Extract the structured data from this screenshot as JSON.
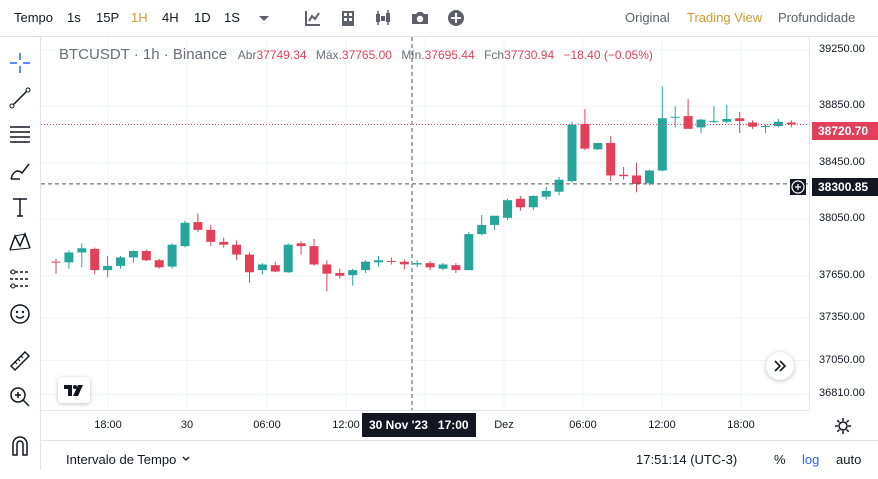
{
  "topbar": {
    "tempo_label": "Tempo",
    "intervals": [
      "1s",
      "15P",
      "1H",
      "4H",
      "1D",
      "1S"
    ],
    "active_interval": "1H",
    "views": [
      "Original",
      "Trading View",
      "Profundidade"
    ],
    "active_view": "Trading View"
  },
  "legend": {
    "symbol": "BTCUSDT · 1h · Binance",
    "open_label": "Abr",
    "open_value": "37749.34",
    "high_label": "Máx.",
    "high_value": "37765.00",
    "low_label": "Mín.",
    "low_value": "37695.44",
    "close_label": "Fch",
    "close_value": "37730.94",
    "change": "−18.40 (−0.05%)"
  },
  "price_axis": {
    "ticks": [
      "39250.00",
      "38850.00",
      "38450.00",
      "38050.00",
      "37650.00",
      "37350.00",
      "37050.00",
      "36810.00"
    ],
    "last_price_tag": "38720.70",
    "crosshair_price_tag": "38300.85"
  },
  "time_axis": {
    "ticks": [
      "18:00",
      "30",
      "06:00",
      "12:00",
      "Dez",
      "06:00",
      "12:00",
      "18:00"
    ],
    "crosshair_label": "30 Nov '23   17:00"
  },
  "bottombar": {
    "range_label": "Intervalo de Tempo",
    "clock": "17:51:14 (UTC-3)",
    "percent_label": "%",
    "log_label": "log",
    "auto_label": "auto"
  },
  "colors": {
    "up": "#26a69a",
    "down": "#e2405a",
    "accent": "#d09a2f",
    "log_blue": "#2962ff"
  },
  "chart_data": {
    "type": "candlestick",
    "symbol": "BTCUSDT",
    "interval": "1h",
    "candles": [
      {
        "o": 37750,
        "h": 37770,
        "l": 37665,
        "c": 37745
      },
      {
        "o": 37745,
        "h": 37830,
        "l": 37700,
        "c": 37815
      },
      {
        "o": 37815,
        "h": 37880,
        "l": 37710,
        "c": 37845
      },
      {
        "o": 37840,
        "h": 37850,
        "l": 37660,
        "c": 37690
      },
      {
        "o": 37690,
        "h": 37790,
        "l": 37640,
        "c": 37720
      },
      {
        "o": 37720,
        "h": 37790,
        "l": 37700,
        "c": 37780
      },
      {
        "o": 37780,
        "h": 37830,
        "l": 37740,
        "c": 37825
      },
      {
        "o": 37825,
        "h": 37835,
        "l": 37755,
        "c": 37760
      },
      {
        "o": 37760,
        "h": 37770,
        "l": 37700,
        "c": 37710
      },
      {
        "o": 37715,
        "h": 37880,
        "l": 37700,
        "c": 37870
      },
      {
        "o": 37860,
        "h": 38040,
        "l": 37850,
        "c": 38025
      },
      {
        "o": 38030,
        "h": 38090,
        "l": 37960,
        "c": 37975
      },
      {
        "o": 37975,
        "h": 38010,
        "l": 37860,
        "c": 37890
      },
      {
        "o": 37890,
        "h": 37920,
        "l": 37850,
        "c": 37870
      },
      {
        "o": 37870,
        "h": 37900,
        "l": 37760,
        "c": 37800
      },
      {
        "o": 37800,
        "h": 37815,
        "l": 37600,
        "c": 37675
      },
      {
        "o": 37690,
        "h": 37740,
        "l": 37660,
        "c": 37730
      },
      {
        "o": 37725,
        "h": 37750,
        "l": 37675,
        "c": 37680
      },
      {
        "o": 37675,
        "h": 37880,
        "l": 37670,
        "c": 37870
      },
      {
        "o": 37880,
        "h": 37895,
        "l": 37800,
        "c": 37860
      },
      {
        "o": 37860,
        "h": 37910,
        "l": 37720,
        "c": 37730
      },
      {
        "o": 37730,
        "h": 37760,
        "l": 37540,
        "c": 37665
      },
      {
        "o": 37670,
        "h": 37700,
        "l": 37630,
        "c": 37650
      },
      {
        "o": 37655,
        "h": 37700,
        "l": 37580,
        "c": 37690
      },
      {
        "o": 37690,
        "h": 37760,
        "l": 37670,
        "c": 37750
      },
      {
        "o": 37745,
        "h": 37790,
        "l": 37715,
        "c": 37760
      },
      {
        "o": 37755,
        "h": 37780,
        "l": 37730,
        "c": 37750
      },
      {
        "o": 37749,
        "h": 37765,
        "l": 37695,
        "c": 37731
      },
      {
        "o": 37730,
        "h": 37760,
        "l": 37710,
        "c": 37740
      },
      {
        "o": 37740,
        "h": 37755,
        "l": 37690,
        "c": 37710
      },
      {
        "o": 37700,
        "h": 37740,
        "l": 37690,
        "c": 37730
      },
      {
        "o": 37725,
        "h": 37740,
        "l": 37670,
        "c": 37690
      },
      {
        "o": 37690,
        "h": 37960,
        "l": 37690,
        "c": 37945
      },
      {
        "o": 37945,
        "h": 38080,
        "l": 37935,
        "c": 38010
      },
      {
        "o": 38010,
        "h": 38070,
        "l": 37975,
        "c": 38075
      },
      {
        "o": 38060,
        "h": 38195,
        "l": 38045,
        "c": 38185
      },
      {
        "o": 38195,
        "h": 38215,
        "l": 38110,
        "c": 38135
      },
      {
        "o": 38135,
        "h": 38220,
        "l": 38115,
        "c": 38215
      },
      {
        "o": 38210,
        "h": 38280,
        "l": 38190,
        "c": 38250
      },
      {
        "o": 38245,
        "h": 38350,
        "l": 38220,
        "c": 38330
      },
      {
        "o": 38320,
        "h": 38740,
        "l": 38310,
        "c": 38720
      },
      {
        "o": 38725,
        "h": 38830,
        "l": 38540,
        "c": 38550
      },
      {
        "o": 38545,
        "h": 38590,
        "l": 38540,
        "c": 38590
      },
      {
        "o": 38590,
        "h": 38640,
        "l": 38320,
        "c": 38360
      },
      {
        "o": 38365,
        "h": 38420,
        "l": 38330,
        "c": 38355
      },
      {
        "o": 38360,
        "h": 38450,
        "l": 38240,
        "c": 38300
      },
      {
        "o": 38305,
        "h": 38400,
        "l": 38290,
        "c": 38395
      },
      {
        "o": 38395,
        "h": 38990,
        "l": 38390,
        "c": 38765
      },
      {
        "o": 38770,
        "h": 38850,
        "l": 38700,
        "c": 38775
      },
      {
        "o": 38780,
        "h": 38900,
        "l": 38690,
        "c": 38690
      },
      {
        "o": 38700,
        "h": 38760,
        "l": 38660,
        "c": 38755
      },
      {
        "o": 38740,
        "h": 38850,
        "l": 38730,
        "c": 38745
      },
      {
        "o": 38740,
        "h": 38860,
        "l": 38730,
        "c": 38760
      },
      {
        "o": 38765,
        "h": 38810,
        "l": 38660,
        "c": 38745
      },
      {
        "o": 38735,
        "h": 38750,
        "l": 38690,
        "c": 38705
      },
      {
        "o": 38705,
        "h": 38720,
        "l": 38660,
        "c": 38710
      },
      {
        "o": 38710,
        "h": 38760,
        "l": 38700,
        "c": 38740
      },
      {
        "o": 38735,
        "h": 38750,
        "l": 38700,
        "c": 38721
      }
    ],
    "last_price": 38720.7,
    "crosshair_price": 38300.85,
    "ylim": [
      36700,
      39340
    ],
    "grid": true,
    "scale": "linear"
  }
}
